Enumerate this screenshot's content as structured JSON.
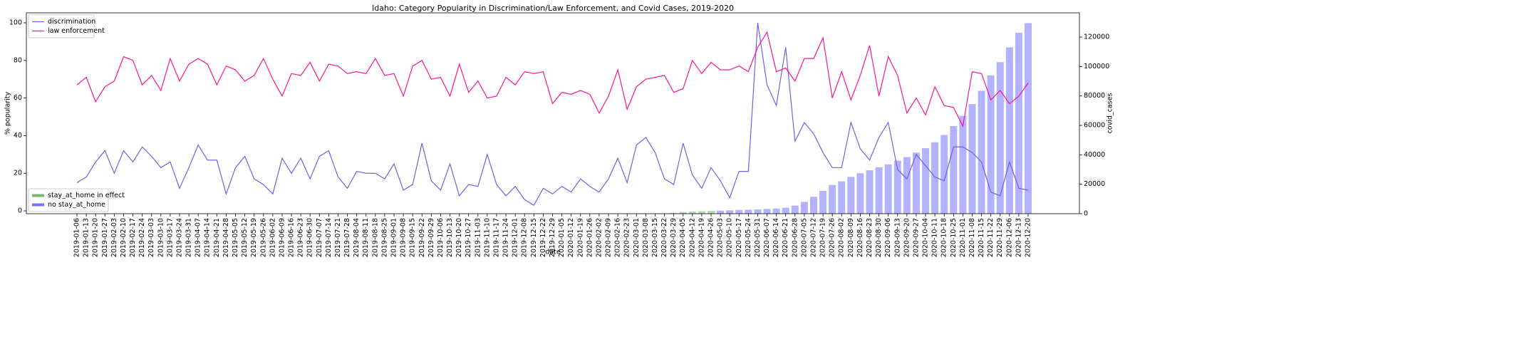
{
  "chart_data": {
    "type": "line_bar",
    "title": "Idaho: Category Popularity in Discrimination/Law Enforcement, and Covid Cases, 2019-2020",
    "xlabel": "date",
    "ylabel": "% popularity",
    "y2label": "covid_cases",
    "categories": [
      "2019-01-06",
      "2019-01-13",
      "2019-01-20",
      "2019-01-27",
      "2019-02-03",
      "2019-02-10",
      "2019-02-17",
      "2019-02-24",
      "2019-03-03",
      "2019-03-10",
      "2019-03-17",
      "2019-03-24",
      "2019-03-31",
      "2019-04-07",
      "2019-04-14",
      "2019-04-21",
      "2019-04-28",
      "2019-05-05",
      "2019-05-12",
      "2019-05-19",
      "2019-05-26",
      "2019-06-02",
      "2019-06-09",
      "2019-06-16",
      "2019-06-23",
      "2019-06-30",
      "2019-07-07",
      "2019-07-14",
      "2019-07-21",
      "2019-07-28",
      "2019-08-04",
      "2019-08-11",
      "2019-08-18",
      "2019-08-25",
      "2019-09-01",
      "2019-09-08",
      "2019-09-15",
      "2019-09-22",
      "2019-09-29",
      "2019-10-06",
      "2019-10-13",
      "2019-10-20",
      "2019-10-27",
      "2019-11-03",
      "2019-11-10",
      "2019-11-17",
      "2019-11-24",
      "2019-12-01",
      "2019-12-08",
      "2019-12-15",
      "2019-12-22",
      "2019-12-29",
      "2020-01-05",
      "2020-01-12",
      "2020-01-19",
      "2020-01-26",
      "2020-02-02",
      "2020-02-09",
      "2020-02-16",
      "2020-02-23",
      "2020-03-01",
      "2020-03-08",
      "2020-03-15",
      "2020-03-22",
      "2020-03-29",
      "2020-04-05",
      "2020-04-12",
      "2020-04-19",
      "2020-04-26",
      "2020-05-03",
      "2020-05-10",
      "2020-05-17",
      "2020-05-24",
      "2020-05-31",
      "2020-06-07",
      "2020-06-14",
      "2020-06-21",
      "2020-06-28",
      "2020-07-05",
      "2020-07-12",
      "2020-07-19",
      "2020-07-26",
      "2020-08-02",
      "2020-08-09",
      "2020-08-16",
      "2020-08-23",
      "2020-08-30",
      "2020-09-06",
      "2020-09-13",
      "2020-09-20",
      "2020-09-27",
      "2020-10-04",
      "2020-10-11",
      "2020-10-18",
      "2020-10-25",
      "2020-11-01",
      "2020-11-08",
      "2020-11-15",
      "2020-11-22",
      "2020-11-29",
      "2020-12-06",
      "2020-12-13",
      "2020-12-20"
    ],
    "series": [
      {
        "name": "discrimination",
        "kind": "line",
        "color": "#7060e8",
        "values": [
          15,
          18,
          26,
          32,
          20,
          32,
          26,
          34,
          29,
          23,
          26,
          12,
          23,
          35,
          27,
          27,
          9,
          23,
          29,
          17,
          14,
          9,
          28,
          20,
          28,
          17,
          29,
          32,
          18,
          12,
          21,
          20,
          20,
          17,
          25,
          11,
          14,
          36,
          16,
          11,
          25,
          8,
          14,
          13,
          30,
          14,
          8,
          13,
          6,
          3,
          12,
          9,
          13,
          10,
          17,
          13,
          10,
          17,
          28,
          15,
          35,
          39,
          31,
          17,
          14,
          36,
          19,
          12,
          23,
          16,
          7,
          21,
          21,
          100,
          67,
          56,
          87,
          37,
          47,
          41,
          31,
          23,
          23,
          47,
          33,
          27,
          39,
          47,
          22,
          17,
          30,
          24,
          18,
          16,
          34,
          34,
          31,
          26,
          10,
          8,
          26,
          12,
          11
        ]
      },
      {
        "name": "law enforcement",
        "kind": "line",
        "color": "#ff1493",
        "values": [
          67,
          71,
          58,
          66,
          69,
          82,
          80,
          67,
          72,
          64,
          81,
          69,
          78,
          81,
          78,
          67,
          77,
          75,
          69,
          72,
          81,
          70,
          61,
          73,
          72,
          79,
          69,
          78,
          77,
          73,
          74,
          73,
          81,
          72,
          73,
          61,
          77,
          80,
          70,
          71,
          61,
          78,
          63,
          69,
          60,
          61,
          71,
          67,
          74,
          73,
          74,
          57,
          63,
          62,
          64,
          62,
          52,
          61,
          75,
          54,
          66,
          70,
          71,
          72,
          63,
          65,
          80,
          73,
          79,
          75,
          75,
          77,
          74,
          87,
          95,
          74,
          76,
          69,
          81,
          81,
          92,
          60,
          74,
          59,
          72,
          88,
          61,
          82,
          72,
          52,
          60,
          51,
          66,
          56,
          55,
          45,
          74,
          73,
          59,
          64,
          57,
          61,
          68
        ]
      },
      {
        "name": "stay_at_home in effect",
        "kind": "bar",
        "axis": "y2",
        "color": "#008000",
        "values": [
          null,
          null,
          null,
          null,
          null,
          null,
          null,
          null,
          null,
          null,
          null,
          null,
          null,
          null,
          null,
          null,
          null,
          null,
          null,
          null,
          null,
          null,
          null,
          null,
          null,
          null,
          null,
          null,
          null,
          null,
          null,
          null,
          null,
          null,
          null,
          null,
          null,
          null,
          null,
          null,
          null,
          null,
          null,
          null,
          null,
          null,
          null,
          null,
          null,
          null,
          null,
          null,
          null,
          null,
          null,
          null,
          null,
          null,
          null,
          null,
          null,
          null,
          null,
          null,
          500,
          1100,
          1400,
          1700,
          1900,
          null,
          null,
          null,
          null,
          null,
          null,
          null,
          null,
          null,
          null,
          null,
          null,
          null,
          null,
          null,
          null,
          null,
          null,
          null,
          null,
          null,
          null,
          null,
          null,
          null,
          null,
          null,
          null,
          null,
          null,
          null,
          null,
          null,
          null
        ]
      },
      {
        "name": "no stay_at_home",
        "kind": "bar",
        "axis": "y2",
        "color": "#0000ff",
        "values": [
          0,
          0,
          0,
          0,
          0,
          0,
          0,
          0,
          0,
          0,
          0,
          0,
          0,
          0,
          0,
          0,
          0,
          0,
          0,
          0,
          0,
          0,
          0,
          0,
          0,
          0,
          0,
          0,
          0,
          0,
          0,
          0,
          0,
          0,
          0,
          0,
          0,
          0,
          0,
          0,
          0,
          0,
          0,
          0,
          0,
          0,
          0,
          0,
          0,
          0,
          0,
          0,
          0,
          0,
          0,
          0,
          0,
          0,
          0,
          0,
          0,
          0,
          0,
          50,
          null,
          null,
          null,
          null,
          null,
          2100,
          2300,
          2500,
          2700,
          2900,
          3200,
          3500,
          4000,
          5500,
          8000,
          11500,
          15500,
          19500,
          22000,
          25000,
          27500,
          29500,
          31500,
          33500,
          36000,
          38500,
          41500,
          44500,
          48500,
          53500,
          59500,
          66500,
          74500,
          83500,
          94000,
          103000,
          113000,
          123000,
          129500
        ]
      }
    ],
    "ylim": [
      -1.5,
      105.3
    ],
    "yticks": [
      0,
      20,
      40,
      60,
      80,
      100
    ],
    "y2lim": [
      0,
      136500
    ],
    "y2ticks": [
      0,
      20000,
      40000,
      60000,
      80000,
      100000,
      120000
    ],
    "legend": "upper left",
    "legend2": "lower left"
  }
}
